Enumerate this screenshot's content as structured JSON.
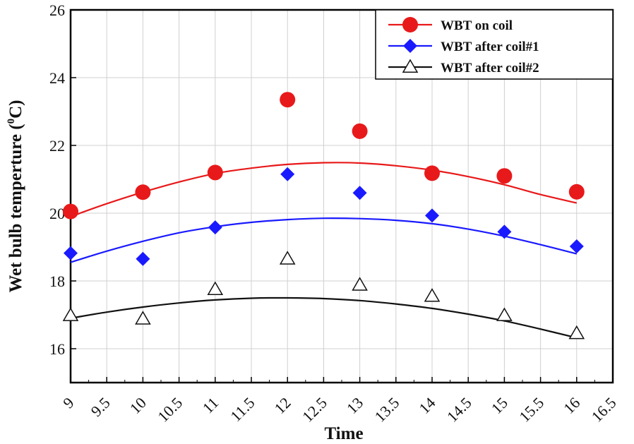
{
  "chart_data": {
    "type": "scatter",
    "xlabel": "Time",
    "ylabel_main": "Wet bulb temperture (",
    "ylabel_sup": "0",
    "ylabel_tail": "C)",
    "xlim": [
      9,
      16.5
    ],
    "ylim": [
      15,
      26
    ],
    "xticks": [
      "9",
      "9.5",
      "10",
      "10.5",
      "11",
      "11.5",
      "12",
      "12.5",
      "13",
      "13.5",
      "14",
      "14.5",
      "15",
      "15.5",
      "16",
      "16.5"
    ],
    "yticks": [
      "16",
      "18",
      "20",
      "22",
      "24",
      "26"
    ],
    "grid": true,
    "legend_position": "top-right",
    "series": [
      {
        "name": "WBT on coil",
        "color": "#e8191a",
        "marker": "circle",
        "x": [
          9,
          10,
          11,
          12,
          13,
          14,
          15,
          16
        ],
        "y": [
          20.05,
          20.62,
          21.2,
          23.35,
          22.42,
          21.18,
          21.1,
          20.63
        ],
        "fit": {
          "x": [
            9,
            9.5,
            10,
            10.5,
            11,
            11.5,
            12,
            12.5,
            13,
            13.5,
            14,
            14.5,
            15,
            15.5,
            16
          ],
          "y": [
            19.9,
            20.28,
            20.62,
            20.92,
            21.17,
            21.33,
            21.44,
            21.49,
            21.48,
            21.4,
            21.27,
            21.08,
            20.84,
            20.55,
            20.3
          ]
        }
      },
      {
        "name": "WBT after coil#1",
        "color": "#1a1aff",
        "marker": "diamond",
        "x": [
          9,
          10,
          11,
          12,
          13,
          14,
          15,
          16
        ],
        "y": [
          18.82,
          18.65,
          19.58,
          21.15,
          20.6,
          19.93,
          19.45,
          19.02
        ],
        "fit": {
          "x": [
            9,
            9.5,
            10,
            10.5,
            11,
            11.5,
            12,
            12.5,
            13,
            13.5,
            14,
            14.5,
            15,
            15.5,
            16
          ],
          "y": [
            18.55,
            18.88,
            19.17,
            19.42,
            19.6,
            19.73,
            19.81,
            19.85,
            19.84,
            19.79,
            19.69,
            19.53,
            19.32,
            19.07,
            18.8
          ]
        }
      },
      {
        "name": "WBT after coil#2",
        "color": "#111111",
        "marker": "triangle",
        "x": [
          9,
          10,
          11,
          12,
          13,
          14,
          15,
          16
        ],
        "y": [
          16.98,
          16.88,
          17.75,
          18.65,
          17.88,
          17.55,
          16.98,
          16.45
        ],
        "fit": {
          "x": [
            9,
            9.5,
            10,
            10.5,
            11,
            11.5,
            12,
            12.5,
            13,
            13.5,
            14,
            14.5,
            15,
            15.5,
            16
          ],
          "y": [
            16.9,
            17.08,
            17.23,
            17.35,
            17.44,
            17.49,
            17.5,
            17.48,
            17.42,
            17.32,
            17.19,
            17.02,
            16.82,
            16.58,
            16.32
          ]
        }
      }
    ]
  }
}
